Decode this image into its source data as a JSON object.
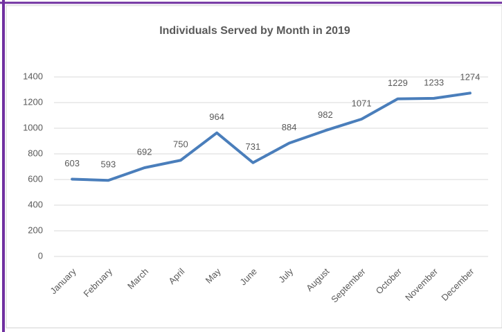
{
  "chart_data": {
    "type": "line",
    "title": "Individuals Served by Month in 2019",
    "categories": [
      "January",
      "February",
      "March",
      "April",
      "May",
      "June",
      "July",
      "August",
      "September",
      "October",
      "November",
      "December"
    ],
    "values": [
      603,
      593,
      692,
      750,
      964,
      731,
      884,
      982,
      1071,
      1229,
      1233,
      1274
    ],
    "color": "#4a7ebb",
    "ylim": [
      0,
      1400
    ],
    "yticks": [
      0,
      200,
      400,
      600,
      800,
      1000,
      1200,
      1400
    ],
    "grid": true
  }
}
